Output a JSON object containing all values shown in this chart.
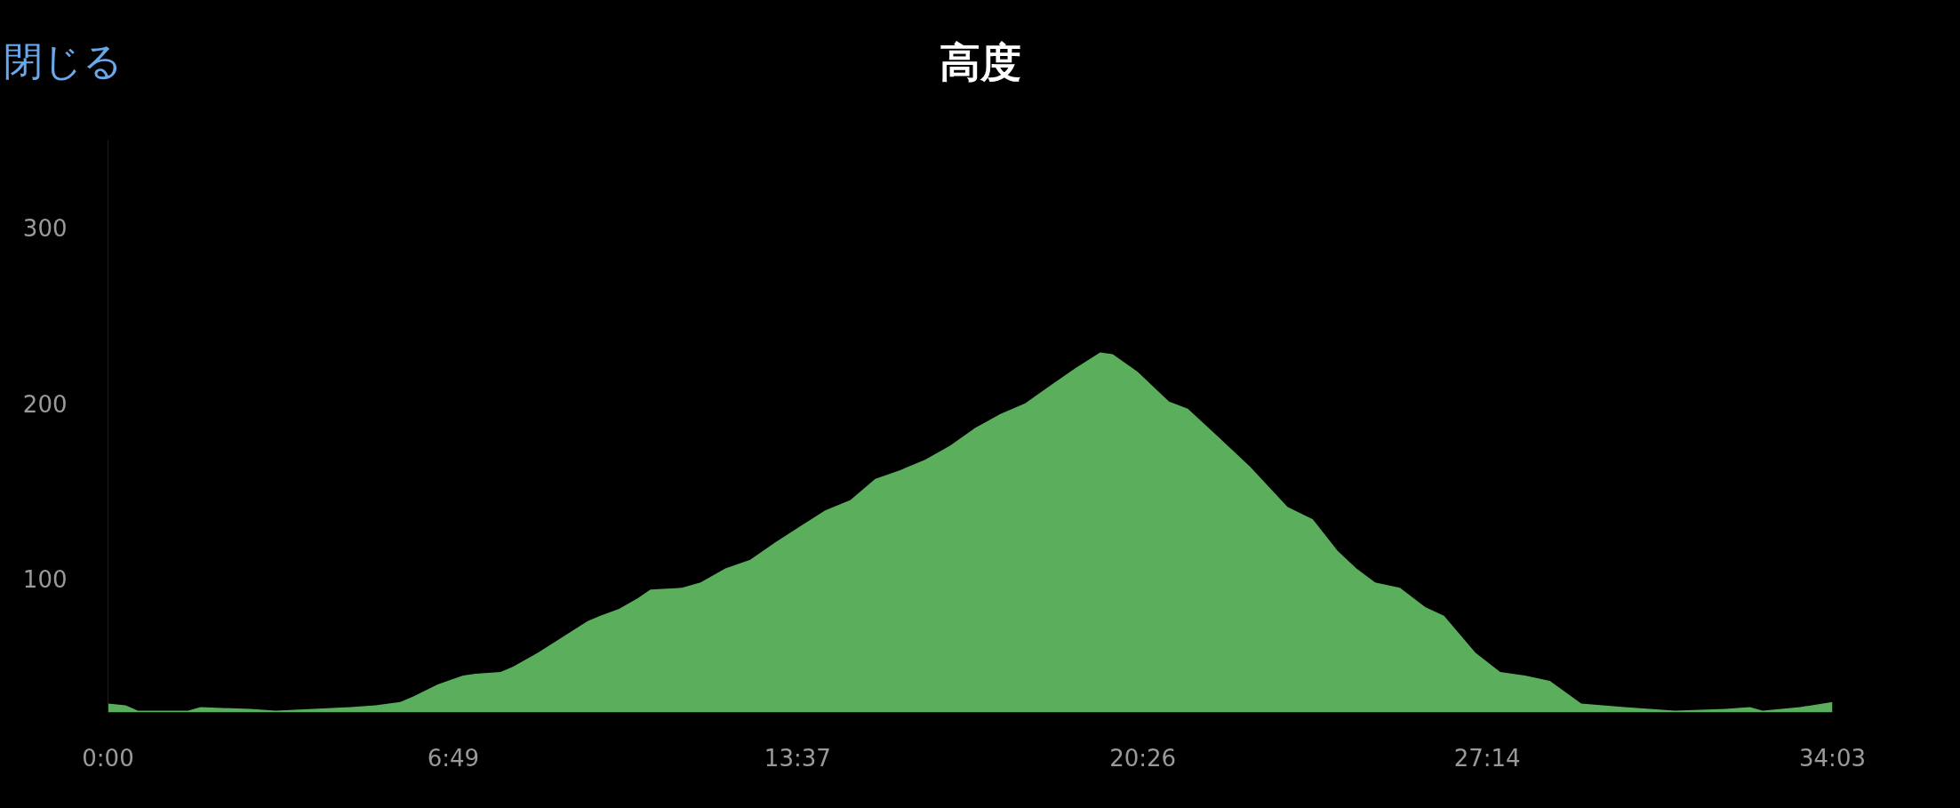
{
  "chart_data": {
    "type": "area",
    "title": "高度",
    "annotations": [
      "閉じる"
    ],
    "color": "#5aae5c",
    "grid": false,
    "x": [
      0,
      0.35,
      0.59,
      1.58,
      1.83,
      2.81,
      3.31,
      4.79,
      5.28,
      5.77,
      6.02,
      6.51,
      7.01,
      7.25,
      7.75,
      7.99,
      8.49,
      8.98,
      9.47,
      9.72,
      10.09,
      10.46,
      10.71,
      11.33,
      11.7,
      12.19,
      12.68,
      13.18,
      13.67,
      14.16,
      14.66,
      15.15,
      15.64,
      16.14,
      16.63,
      17.12,
      17.62,
      18.11,
      18.6,
      19.1,
      19.59,
      19.84,
      20.33,
      20.95,
      21.32,
      21.81,
      22.55,
      23.29,
      23.79,
      24.28,
      24.65,
      25.02,
      25.51,
      26.01,
      26.38,
      27.0,
      27.49,
      27.98,
      28.47,
      29.09,
      29.95,
      30.94,
      31.93,
      32.42,
      32.67,
      33.41,
      34.05
    ],
    "values": [
      29,
      28,
      25,
      25,
      27,
      26,
      25,
      27,
      28,
      30,
      33,
      40,
      45,
      46,
      47,
      50,
      58,
      67,
      76,
      79,
      83,
      89,
      94,
      95,
      98,
      106,
      111,
      121,
      130,
      139,
      145,
      157,
      162,
      168,
      176,
      186,
      194,
      200,
      210,
      220,
      229,
      228,
      218,
      201,
      197,
      184,
      164,
      141,
      134,
      116,
      106,
      98,
      95,
      84,
      79,
      58,
      47,
      45,
      42,
      29,
      27,
      25,
      26,
      27,
      25,
      27,
      30
    ],
    "xlim": [
      0,
      34.05
    ],
    "ylim": [
      24,
      350
    ],
    "yticks": [
      100,
      200,
      300
    ],
    "xticks": [
      {
        "value": 0,
        "label": "0:00"
      },
      {
        "value": 6.8167,
        "label": "6:49"
      },
      {
        "value": 13.6167,
        "label": "13:37"
      },
      {
        "value": 20.4333,
        "label": "20:26"
      },
      {
        "value": 27.2333,
        "label": "27:14"
      },
      {
        "value": 34.05,
        "label": "34:03"
      }
    ]
  }
}
